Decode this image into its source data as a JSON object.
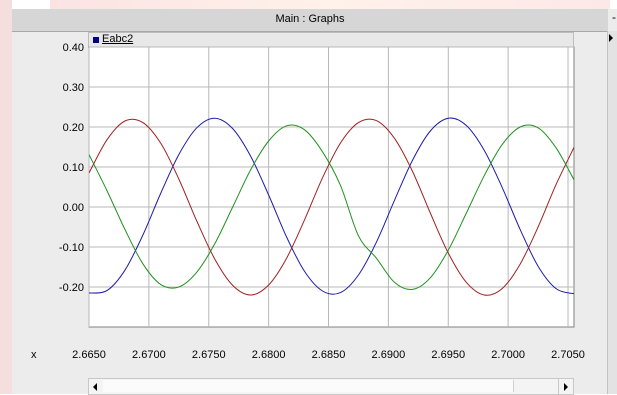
{
  "window": {
    "title": "Main : Graphs",
    "title_right_mark": "-"
  },
  "legend": {
    "label": "Eabc2",
    "swatch_color": "#00008b"
  },
  "x_axis_label": "x",
  "scrollbar": {
    "left_arrow": "left-arrow-icon",
    "right_arrow": "right-arrow-icon"
  },
  "chart_data": {
    "type": "line",
    "title": "",
    "xlabel": "x",
    "ylabel": "",
    "xlim": [
      2.665,
      2.7055
    ],
    "ylim": [
      -0.3,
      0.4
    ],
    "x_ticks": [
      2.665,
      2.67,
      2.675,
      2.68,
      2.685,
      2.69,
      2.695,
      2.7,
      2.705
    ],
    "x_tick_labels": [
      "2.6650",
      "2.6700",
      "2.6750",
      "2.6800",
      "2.6850",
      "2.6900",
      "2.6950",
      "2.7000",
      "2.7050"
    ],
    "y_ticks": [
      0.4,
      0.3,
      0.2,
      0.1,
      0.0,
      -0.1,
      -0.2
    ],
    "y_tick_labels": [
      "0.40",
      "0.30",
      "0.20",
      "0.10",
      "0.00",
      "-0.10",
      "-0.20"
    ],
    "grid": true,
    "legend": "top-left",
    "series": [
      {
        "name": "Eabc2",
        "color": "#1c1caa",
        "x": [
          2.665,
          2.6665,
          2.668,
          2.6695,
          2.671,
          2.6725,
          2.674,
          2.6755,
          2.677,
          2.6785,
          2.68,
          2.6815,
          2.683,
          2.6845,
          2.686,
          2.6875,
          2.689,
          2.6905,
          2.692,
          2.6935,
          2.695,
          2.6965,
          2.698,
          2.6995,
          2.701,
          2.7025,
          2.704,
          2.7055
        ],
        "values": [
          -0.215,
          -0.209,
          -0.158,
          -0.07,
          0.035,
          0.131,
          0.198,
          0.222,
          0.196,
          0.127,
          0.03,
          -0.075,
          -0.161,
          -0.21,
          -0.214,
          -0.17,
          -0.088,
          0.016,
          0.116,
          0.19,
          0.222,
          0.204,
          0.142,
          0.049,
          -0.056,
          -0.148,
          -0.204,
          -0.217
        ]
      },
      {
        "name": "",
        "color": "#a02020",
        "x": [
          2.665,
          2.6665,
          2.668,
          2.6695,
          2.671,
          2.6725,
          2.674,
          2.6755,
          2.677,
          2.6785,
          2.68,
          2.6815,
          2.683,
          2.6845,
          2.686,
          2.6875,
          2.689,
          2.6905,
          2.692,
          2.6935,
          2.695,
          2.6965,
          2.698,
          2.6995,
          2.701,
          2.7025,
          2.704,
          2.7055
        ],
        "values": [
          0.085,
          0.168,
          0.215,
          0.211,
          0.159,
          0.07,
          -0.035,
          -0.13,
          -0.196,
          -0.22,
          -0.195,
          -0.128,
          -0.032,
          0.073,
          0.16,
          0.211,
          0.216,
          0.172,
          0.09,
          -0.015,
          -0.115,
          -0.188,
          -0.22,
          -0.204,
          -0.143,
          -0.05,
          0.056,
          0.149
        ]
      },
      {
        "name": "",
        "color": "#209020",
        "x": [
          2.665,
          2.6665,
          2.668,
          2.6695,
          2.671,
          2.6725,
          2.674,
          2.6755,
          2.677,
          2.6785,
          2.68,
          2.6815,
          2.683,
          2.6845,
          2.686,
          2.6875,
          2.689,
          2.6905,
          2.692,
          2.6935,
          2.695,
          2.6965,
          2.698,
          2.6995,
          2.701,
          2.7025,
          2.704,
          2.7055
        ],
        "values": [
          0.131,
          0.041,
          -0.056,
          -0.142,
          -0.194,
          -0.2,
          -0.163,
          -0.092,
          0.0,
          0.093,
          0.165,
          0.203,
          0.193,
          0.138,
          0.054,
          -0.072,
          -0.128,
          -0.188,
          -0.206,
          -0.177,
          -0.108,
          -0.016,
          0.078,
          0.156,
          0.2,
          0.198,
          0.148,
          0.068
        ]
      }
    ]
  }
}
